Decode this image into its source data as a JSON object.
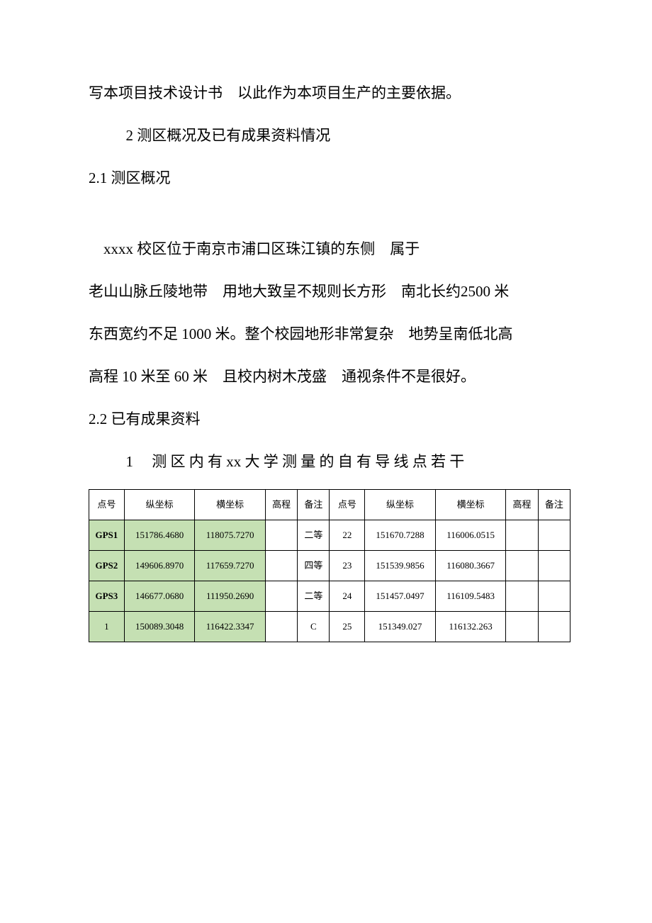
{
  "document": {
    "paragraphs": {
      "p1": "写本项目技术设计书　以此作为本项目生产的主要依据。",
      "p2": "2 测区概况及已有成果资料情况",
      "p3": "2.1 测区概况",
      "p4": "　xxxx 校区位于南京市浦口区珠江镇的东侧　属于",
      "p5": "老山山脉丘陵地带　用地大致呈不规则长方形　南北长约2500 米",
      "p6": "东西宽约不足 1000 米。整个校园地形非常复杂　地势呈南低北高",
      "p7": "高程 10 米至 60 米　且校内树木茂盛　通视条件不是很好。",
      "p8": "2.2 已有成果资料",
      "p9": "1　 测 区 内 有 xx 大 学 测 量 的 自 有 导 线 点 若 干"
    },
    "table": {
      "headers": {
        "h1": "点号",
        "h2": "纵坐标",
        "h3": "横坐标",
        "h4": "高程",
        "h5": "备注",
        "h6": "点号",
        "h7": "纵坐标",
        "h8": "横坐标",
        "h9": "高程",
        "h10": "备注"
      },
      "rows": [
        {
          "c1": "GPS1",
          "c2": "151786.4680",
          "c3": "118075.7270",
          "c4": "",
          "c5": "二等",
          "c6": "22",
          "c7": "151670.7288",
          "c8": "116006.0515",
          "c9": "",
          "c10": "",
          "style_left": "green-bold"
        },
        {
          "c1": "GPS2",
          "c2": "149606.8970",
          "c3": "117659.7270",
          "c4": "",
          "c5": "四等",
          "c6": "23",
          "c7": "151539.9856",
          "c8": "116080.3667",
          "c9": "",
          "c10": "",
          "style_left": "green-bold"
        },
        {
          "c1": "GPS3",
          "c2": "146677.0680",
          "c3": "111950.2690",
          "c4": "",
          "c5": "二等",
          "c6": "24",
          "c7": "151457.0497",
          "c8": "116109.5483",
          "c9": "",
          "c10": "",
          "style_left": "green-bold"
        },
        {
          "c1": "1",
          "c2": "150089.3048",
          "c3": "116422.3347",
          "c4": "",
          "c5": "C",
          "c6": "25",
          "c7": "151349.027",
          "c8": "116132.263",
          "c9": "",
          "c10": "",
          "style_left": "green"
        }
      ],
      "styling": {
        "green_bg": "#c5e0b3",
        "border_color": "#000000",
        "font_size": 13
      }
    }
  }
}
